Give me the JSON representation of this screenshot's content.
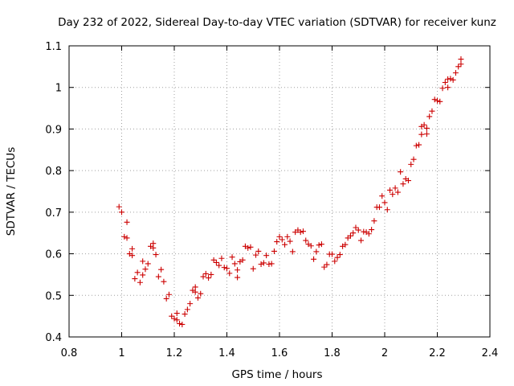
{
  "chart_data": {
    "type": "scatter",
    "title": "Day 232 of 2022, Sidereal Day-to-day VTEC variation (SDTVAR) for receiver kunz",
    "xlabel": "GPS time / hours",
    "ylabel": "SDTVAR / TECUs",
    "xlim": [
      0.8,
      2.4
    ],
    "ylim": [
      0.4,
      1.1
    ],
    "xticks": [
      "0.8",
      "1",
      "1.2",
      "1.4",
      "1.6",
      "1.8",
      "2",
      "2.2",
      "2.4"
    ],
    "yticks": [
      "0.4",
      "0.5",
      "0.6",
      "0.7",
      "0.8",
      "0.9",
      "1",
      "1.1"
    ],
    "grid": true,
    "marker": "+",
    "color": "#cc0000",
    "series": [
      {
        "name": "SDTVAR",
        "points": [
          [
            0.99,
            0.713
          ],
          [
            1.0,
            0.7
          ],
          [
            1.01,
            0.641
          ],
          [
            1.02,
            0.676
          ],
          [
            1.02,
            0.638
          ],
          [
            1.03,
            0.6
          ],
          [
            1.04,
            0.612
          ],
          [
            1.04,
            0.596
          ],
          [
            1.05,
            0.54
          ],
          [
            1.06,
            0.555
          ],
          [
            1.07,
            0.531
          ],
          [
            1.08,
            0.549
          ],
          [
            1.08,
            0.582
          ],
          [
            1.09,
            0.563
          ],
          [
            1.1,
            0.576
          ],
          [
            1.11,
            0.618
          ],
          [
            1.12,
            0.614
          ],
          [
            1.12,
            0.625
          ],
          [
            1.13,
            0.598
          ],
          [
            1.14,
            0.545
          ],
          [
            1.15,
            0.562
          ],
          [
            1.16,
            0.533
          ],
          [
            1.17,
            0.492
          ],
          [
            1.18,
            0.502
          ],
          [
            1.19,
            0.45
          ],
          [
            1.2,
            0.444
          ],
          [
            1.21,
            0.441
          ],
          [
            1.21,
            0.457
          ],
          [
            1.22,
            0.432
          ],
          [
            1.23,
            0.43
          ],
          [
            1.24,
            0.455
          ],
          [
            1.25,
            0.466
          ],
          [
            1.26,
            0.48
          ],
          [
            1.27,
            0.512
          ],
          [
            1.28,
            0.52
          ],
          [
            1.28,
            0.508
          ],
          [
            1.29,
            0.494
          ],
          [
            1.3,
            0.504
          ],
          [
            1.31,
            0.545
          ],
          [
            1.32,
            0.552
          ],
          [
            1.33,
            0.542
          ],
          [
            1.34,
            0.55
          ],
          [
            1.35,
            0.585
          ],
          [
            1.36,
            0.579
          ],
          [
            1.37,
            0.572
          ],
          [
            1.38,
            0.589
          ],
          [
            1.39,
            0.567
          ],
          [
            1.4,
            0.565
          ],
          [
            1.41,
            0.553
          ],
          [
            1.42,
            0.592
          ],
          [
            1.43,
            0.576
          ],
          [
            1.44,
            0.561
          ],
          [
            1.44,
            0.543
          ],
          [
            1.45,
            0.581
          ],
          [
            1.46,
            0.585
          ],
          [
            1.47,
            0.618
          ],
          [
            1.48,
            0.614
          ],
          [
            1.49,
            0.616
          ],
          [
            1.5,
            0.564
          ],
          [
            1.51,
            0.597
          ],
          [
            1.52,
            0.606
          ],
          [
            1.53,
            0.575
          ],
          [
            1.54,
            0.578
          ],
          [
            1.55,
            0.596
          ],
          [
            1.56,
            0.575
          ],
          [
            1.57,
            0.576
          ],
          [
            1.58,
            0.606
          ],
          [
            1.59,
            0.629
          ],
          [
            1.6,
            0.641
          ],
          [
            1.61,
            0.634
          ],
          [
            1.62,
            0.622
          ],
          [
            1.63,
            0.641
          ],
          [
            1.64,
            0.63
          ],
          [
            1.65,
            0.605
          ],
          [
            1.66,
            0.652
          ],
          [
            1.67,
            0.657
          ],
          [
            1.68,
            0.652
          ],
          [
            1.69,
            0.654
          ],
          [
            1.7,
            0.632
          ],
          [
            1.71,
            0.623
          ],
          [
            1.72,
            0.619
          ],
          [
            1.73,
            0.587
          ],
          [
            1.74,
            0.605
          ],
          [
            1.75,
            0.621
          ],
          [
            1.76,
            0.623
          ],
          [
            1.77,
            0.568
          ],
          [
            1.78,
            0.574
          ],
          [
            1.79,
            0.599
          ],
          [
            1.8,
            0.599
          ],
          [
            1.81,
            0.582
          ],
          [
            1.82,
            0.591
          ],
          [
            1.83,
            0.598
          ],
          [
            1.84,
            0.618
          ],
          [
            1.85,
            0.622
          ],
          [
            1.86,
            0.638
          ],
          [
            1.87,
            0.643
          ],
          [
            1.88,
            0.65
          ],
          [
            1.89,
            0.663
          ],
          [
            1.9,
            0.657
          ],
          [
            1.91,
            0.632
          ],
          [
            1.92,
            0.653
          ],
          [
            1.93,
            0.652
          ],
          [
            1.94,
            0.648
          ],
          [
            1.95,
            0.658
          ],
          [
            1.96,
            0.679
          ],
          [
            1.97,
            0.712
          ],
          [
            1.98,
            0.712
          ],
          [
            1.99,
            0.739
          ],
          [
            2.0,
            0.723
          ],
          [
            2.01,
            0.706
          ],
          [
            2.02,
            0.753
          ],
          [
            2.03,
            0.743
          ],
          [
            2.04,
            0.758
          ],
          [
            2.05,
            0.748
          ],
          [
            2.06,
            0.797
          ],
          [
            2.07,
            0.768
          ],
          [
            2.08,
            0.78
          ],
          [
            2.09,
            0.776
          ],
          [
            2.1,
            0.815
          ],
          [
            2.11,
            0.827
          ],
          [
            2.12,
            0.86
          ],
          [
            2.13,
            0.862
          ],
          [
            2.14,
            0.887
          ],
          [
            2.14,
            0.906
          ],
          [
            2.15,
            0.91
          ],
          [
            2.16,
            0.888
          ],
          [
            2.16,
            0.902
          ],
          [
            2.17,
            0.93
          ],
          [
            2.18,
            0.943
          ],
          [
            2.19,
            0.971
          ],
          [
            2.2,
            0.968
          ],
          [
            2.21,
            0.966
          ],
          [
            2.22,
            0.998
          ],
          [
            2.23,
            1.012
          ],
          [
            2.24,
            1.02
          ],
          [
            2.24,
            1.0
          ],
          [
            2.25,
            1.021
          ],
          [
            2.26,
            1.018
          ],
          [
            2.27,
            1.035
          ],
          [
            2.28,
            1.05
          ],
          [
            2.29,
            1.068
          ],
          [
            2.29,
            1.056
          ]
        ]
      }
    ]
  }
}
